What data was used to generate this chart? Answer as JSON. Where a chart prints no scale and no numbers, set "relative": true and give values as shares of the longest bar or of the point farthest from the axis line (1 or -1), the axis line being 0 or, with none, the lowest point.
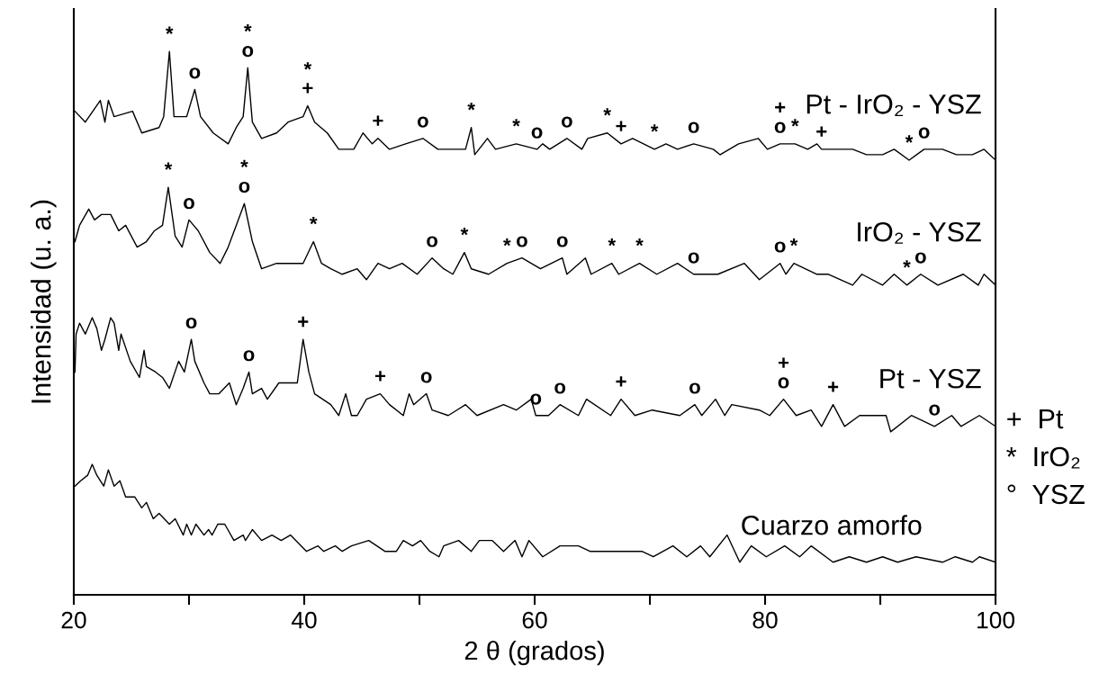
{
  "chart_data": {
    "type": "line",
    "relative": true,
    "xlabel": "2 θ (grados)",
    "ylabel": "Intensidad (u. a.)",
    "xlim": [
      20,
      100
    ],
    "xticks": [
      20,
      {
        "value": 30,
        "label": null
      },
      40,
      {
        "value": 50,
        "label": null
      },
      60,
      {
        "value": 70,
        "label": null
      },
      80,
      {
        "value": 90,
        "label": null
      },
      100
    ],
    "grid": false,
    "legend": false,
    "marker": "none",
    "line_style": "solid",
    "series": [
      {
        "name": "Pt - IrO₂ - YSZ",
        "color": "#000000",
        "x": [
          20.1,
          21.0,
          22.3,
          22.7,
          23.0,
          23.5,
          25.1,
          25.9,
          27.4,
          27.8,
          28.3,
          28.7,
          29.8,
          30.5,
          31.0,
          32.1,
          33.4,
          34.1,
          34.7,
          35.1,
          35.5,
          36.3,
          37.6,
          38.6,
          39.9,
          40.3,
          40.9,
          42.0,
          43.0,
          44.3,
          45.1,
          45.9,
          46.4,
          47.4,
          48.8,
          50.3,
          51.6,
          52.9,
          54.0,
          54.5,
          54.8,
          55.9,
          56.6,
          58.4,
          60.2,
          60.7,
          61.3,
          62.8,
          64.1,
          64.6,
          66.3,
          67.5,
          68.5,
          70.4,
          71.4,
          72.4,
          73.8,
          75.5,
          76.1,
          77.7,
          79.4,
          80.2,
          81.3,
          82.6,
          83.7,
          84.5,
          84.9,
          86.3,
          87.6,
          88.8,
          90.2,
          91.2,
          92.5,
          93.8,
          95.4,
          96.6,
          98.0,
          99.0,
          100.0
        ],
        "values": [
          0.89,
          0.87,
          0.91,
          0.87,
          0.91,
          0.88,
          0.89,
          0.85,
          0.86,
          0.88,
          1.0,
          0.88,
          0.88,
          0.93,
          0.88,
          0.85,
          0.83,
          0.86,
          0.88,
          0.97,
          0.87,
          0.84,
          0.85,
          0.87,
          0.88,
          0.9,
          0.87,
          0.85,
          0.82,
          0.82,
          0.85,
          0.83,
          0.84,
          0.82,
          0.83,
          0.84,
          0.82,
          0.82,
          0.82,
          0.86,
          0.81,
          0.84,
          0.82,
          0.83,
          0.82,
          0.83,
          0.82,
          0.84,
          0.82,
          0.84,
          0.85,
          0.83,
          0.84,
          0.82,
          0.83,
          0.82,
          0.83,
          0.82,
          0.81,
          0.83,
          0.84,
          0.82,
          0.83,
          0.83,
          0.82,
          0.83,
          0.82,
          0.82,
          0.82,
          0.81,
          0.81,
          0.82,
          0.8,
          0.82,
          0.82,
          0.81,
          0.81,
          0.82,
          0.8
        ]
      },
      {
        "name": "IrO₂ - YSZ",
        "color": "#000000",
        "x": [
          20.1,
          20.5,
          21.3,
          21.8,
          22.4,
          23.2,
          23.9,
          24.5,
          25.5,
          26.3,
          27.0,
          27.7,
          28.2,
          28.8,
          29.4,
          30.0,
          30.8,
          31.8,
          32.7,
          33.4,
          34.1,
          34.8,
          35.5,
          36.3,
          37.6,
          39.1,
          39.9,
          40.8,
          41.5,
          42.3,
          43.3,
          44.6,
          45.4,
          46.4,
          47.4,
          48.5,
          49.8,
          51.1,
          52.1,
          52.9,
          53.9,
          54.5,
          56.0,
          57.6,
          58.9,
          60.5,
          62.4,
          62.8,
          64.4,
          64.9,
          66.7,
          67.3,
          69.1,
          70.6,
          72.4,
          73.8,
          75.9,
          78.2,
          79.5,
          81.3,
          81.8,
          82.5,
          84.5,
          85.5,
          87.6,
          88.4,
          90.2,
          91.2,
          92.3,
          93.5,
          95.0,
          97.2,
          98.5,
          99.0,
          100.0
        ],
        "values": [
          0.65,
          0.68,
          0.71,
          0.69,
          0.7,
          0.7,
          0.67,
          0.68,
          0.64,
          0.65,
          0.67,
          0.68,
          0.75,
          0.66,
          0.64,
          0.69,
          0.67,
          0.63,
          0.61,
          0.64,
          0.68,
          0.72,
          0.65,
          0.6,
          0.61,
          0.61,
          0.61,
          0.65,
          0.61,
          0.6,
          0.59,
          0.6,
          0.58,
          0.61,
          0.6,
          0.61,
          0.59,
          0.62,
          0.6,
          0.59,
          0.63,
          0.6,
          0.59,
          0.61,
          0.62,
          0.6,
          0.62,
          0.59,
          0.62,
          0.59,
          0.61,
          0.59,
          0.61,
          0.59,
          0.61,
          0.59,
          0.59,
          0.61,
          0.58,
          0.61,
          0.59,
          0.61,
          0.59,
          0.59,
          0.57,
          0.59,
          0.57,
          0.59,
          0.57,
          0.59,
          0.57,
          0.59,
          0.57,
          0.59,
          0.57
        ]
      },
      {
        "name": "Pt - YSZ",
        "color": "#000000",
        "x": [
          20.1,
          20.2,
          20.5,
          21.0,
          21.6,
          22.0,
          22.4,
          22.7,
          23.2,
          23.5,
          23.9,
          24.1,
          24.9,
          25.7,
          26.1,
          26.3,
          27.1,
          27.7,
          28.3,
          29.1,
          29.6,
          30.2,
          30.5,
          31.3,
          31.8,
          32.6,
          33.5,
          34.1,
          34.7,
          35.2,
          35.5,
          36.3,
          36.8,
          37.8,
          38.8,
          39.4,
          39.9,
          40.4,
          40.9,
          42.3,
          43.0,
          43.6,
          44.1,
          44.6,
          45.4,
          46.6,
          47.4,
          48.6,
          49.1,
          49.5,
          50.6,
          51.1,
          52.5,
          54.0,
          55.0,
          57.3,
          58.4,
          59.7,
          60.1,
          61.2,
          62.2,
          63.8,
          64.5,
          66.6,
          67.5,
          68.7,
          70.2,
          72.6,
          73.9,
          74.5,
          75.7,
          76.5,
          77.1,
          79.5,
          80.4,
          81.6,
          82.7,
          84.0,
          84.9,
          85.9,
          86.9,
          88.2,
          90.5,
          90.9,
          92.7,
          94.7,
          96.2,
          97.0,
          98.6,
          100.0
        ],
        "values": [
          0.41,
          0.48,
          0.5,
          0.48,
          0.51,
          0.49,
          0.45,
          0.47,
          0.51,
          0.5,
          0.45,
          0.48,
          0.43,
          0.4,
          0.45,
          0.42,
          0.41,
          0.4,
          0.38,
          0.43,
          0.41,
          0.47,
          0.43,
          0.39,
          0.37,
          0.37,
          0.39,
          0.35,
          0.38,
          0.41,
          0.37,
          0.38,
          0.36,
          0.39,
          0.39,
          0.39,
          0.47,
          0.41,
          0.37,
          0.35,
          0.33,
          0.37,
          0.33,
          0.33,
          0.36,
          0.37,
          0.35,
          0.33,
          0.37,
          0.35,
          0.37,
          0.34,
          0.33,
          0.35,
          0.33,
          0.35,
          0.34,
          0.36,
          0.33,
          0.33,
          0.35,
          0.33,
          0.36,
          0.33,
          0.36,
          0.33,
          0.34,
          0.33,
          0.35,
          0.33,
          0.36,
          0.33,
          0.35,
          0.34,
          0.33,
          0.36,
          0.33,
          0.34,
          0.31,
          0.35,
          0.31,
          0.33,
          0.33,
          0.3,
          0.33,
          0.31,
          0.33,
          0.31,
          0.33,
          0.31
        ]
      },
      {
        "name": "Cuarzo amorfo",
        "color": "#000000",
        "x": [
          20.1,
          20.6,
          21.2,
          21.6,
          22.0,
          22.6,
          23.0,
          23.5,
          24.0,
          24.5,
          25.3,
          25.9,
          26.3,
          26.9,
          27.4,
          28.3,
          28.8,
          29.5,
          29.8,
          30.2,
          30.6,
          31.3,
          31.7,
          32.0,
          32.5,
          33.1,
          33.9,
          34.7,
          34.9,
          35.5,
          36.3,
          37.2,
          38.0,
          38.8,
          40.2,
          41.2,
          41.7,
          42.7,
          43.3,
          44.1,
          45.6,
          47.0,
          48.0,
          48.6,
          49.4,
          50.1,
          50.9,
          51.7,
          52.1,
          53.4,
          54.5,
          55.2,
          56.3,
          57.3,
          58.3,
          58.9,
          59.5,
          60.7,
          62.2,
          63.8,
          64.8,
          67.0,
          69.3,
          70.3,
          72.0,
          73.2,
          74.4,
          75.2,
          76.7,
          77.8,
          78.8,
          80.1,
          81.7,
          83.0,
          84.0,
          85.9,
          87.3,
          88.8,
          90.2,
          91.5,
          93.1,
          95.4,
          96.5,
          98.0,
          98.6,
          100.0
        ],
        "values": [
          0.2,
          0.21,
          0.22,
          0.24,
          0.22,
          0.2,
          0.23,
          0.2,
          0.21,
          0.18,
          0.18,
          0.16,
          0.17,
          0.14,
          0.15,
          0.13,
          0.14,
          0.11,
          0.13,
          0.11,
          0.13,
          0.11,
          0.12,
          0.11,
          0.13,
          0.13,
          0.1,
          0.11,
          0.1,
          0.12,
          0.1,
          0.11,
          0.1,
          0.11,
          0.08,
          0.09,
          0.08,
          0.09,
          0.08,
          0.09,
          0.1,
          0.08,
          0.08,
          0.1,
          0.09,
          0.1,
          0.08,
          0.07,
          0.09,
          0.1,
          0.08,
          0.1,
          0.1,
          0.08,
          0.1,
          0.07,
          0.1,
          0.07,
          0.09,
          0.09,
          0.08,
          0.08,
          0.08,
          0.07,
          0.09,
          0.07,
          0.09,
          0.07,
          0.11,
          0.06,
          0.09,
          0.07,
          0.09,
          0.07,
          0.09,
          0.06,
          0.07,
          0.06,
          0.07,
          0.06,
          0.07,
          0.06,
          0.07,
          0.06,
          0.07,
          0.06
        ]
      }
    ],
    "annotations": [
      {
        "text": "*",
        "x": 28.3,
        "y": 1.0
      },
      {
        "text": "o",
        "x": 30.5,
        "y": 0.93
      },
      {
        "text": "o",
        "x": 35.1,
        "y": 0.97
      },
      {
        "text": "*",
        "x": 35.1,
        "y": 0.97
      },
      {
        "text": "+",
        "x": 40.3,
        "y": 0.9
      },
      {
        "text": "*",
        "x": 40.3,
        "y": 0.9
      },
      {
        "text": "+",
        "x": 46.4,
        "y": 0.84
      },
      {
        "text": "o",
        "x": 50.3,
        "y": 0.84
      },
      {
        "text": "*",
        "x": 54.5,
        "y": 0.86
      },
      {
        "text": "*",
        "x": 58.4,
        "y": 0.83
      },
      {
        "text": "o",
        "x": 60.2,
        "y": 0.82
      },
      {
        "text": "o",
        "x": 62.8,
        "y": 0.84
      },
      {
        "text": "*",
        "x": 66.3,
        "y": 0.85
      },
      {
        "text": "+",
        "x": 67.5,
        "y": 0.83
      },
      {
        "text": "*",
        "x": 70.4,
        "y": 0.82
      },
      {
        "text": "o",
        "x": 73.8,
        "y": 0.83
      },
      {
        "text": "o",
        "x": 81.3,
        "y": 0.83
      },
      {
        "text": "+",
        "x": 81.3,
        "y": 0.83
      },
      {
        "text": "*",
        "x": 82.6,
        "y": 0.83
      },
      {
        "text": "+",
        "x": 84.9,
        "y": 0.82
      },
      {
        "text": "*",
        "x": 92.5,
        "y": 0.8
      },
      {
        "text": "o",
        "x": 93.8,
        "y": 0.82
      },
      {
        "text": "*",
        "x": 28.2,
        "y": 0.75
      },
      {
        "text": "o",
        "x": 30.0,
        "y": 0.69
      },
      {
        "text": "o",
        "x": 34.8,
        "y": 0.72
      },
      {
        "text": "*",
        "x": 34.8,
        "y": 0.72
      },
      {
        "text": "*",
        "x": 40.8,
        "y": 0.65
      },
      {
        "text": "o",
        "x": 51.1,
        "y": 0.62
      },
      {
        "text": "*",
        "x": 53.9,
        "y": 0.63
      },
      {
        "text": "*",
        "x": 57.6,
        "y": 0.61
      },
      {
        "text": "o",
        "x": 58.9,
        "y": 0.62
      },
      {
        "text": "o",
        "x": 62.4,
        "y": 0.62
      },
      {
        "text": "*",
        "x": 66.7,
        "y": 0.61
      },
      {
        "text": "*",
        "x": 69.1,
        "y": 0.61
      },
      {
        "text": "o",
        "x": 73.8,
        "y": 0.59
      },
      {
        "text": "o",
        "x": 81.3,
        "y": 0.61
      },
      {
        "text": "*",
        "x": 82.5,
        "y": 0.61
      },
      {
        "text": "*",
        "x": 92.3,
        "y": 0.57
      },
      {
        "text": "o",
        "x": 93.5,
        "y": 0.59
      },
      {
        "text": "o",
        "x": 30.2,
        "y": 0.47
      },
      {
        "text": "o",
        "x": 35.2,
        "y": 0.41
      },
      {
        "text": "+",
        "x": 39.9,
        "y": 0.47
      },
      {
        "text": "+",
        "x": 46.6,
        "y": 0.37
      },
      {
        "text": "o",
        "x": 50.6,
        "y": 0.37
      },
      {
        "text": "o",
        "x": 60.1,
        "y": 0.33
      },
      {
        "text": "o",
        "x": 62.2,
        "y": 0.35
      },
      {
        "text": "+",
        "x": 67.5,
        "y": 0.36
      },
      {
        "text": "o",
        "x": 73.9,
        "y": 0.35
      },
      {
        "text": "o",
        "x": 81.6,
        "y": 0.36
      },
      {
        "text": "+",
        "x": 81.6,
        "y": 0.36
      },
      {
        "text": "+",
        "x": 85.9,
        "y": 0.35
      },
      {
        "text": "o",
        "x": 94.7,
        "y": 0.31
      },
      "+  Pt",
      "*  IrO₂",
      "°  YSZ"
    ]
  }
}
